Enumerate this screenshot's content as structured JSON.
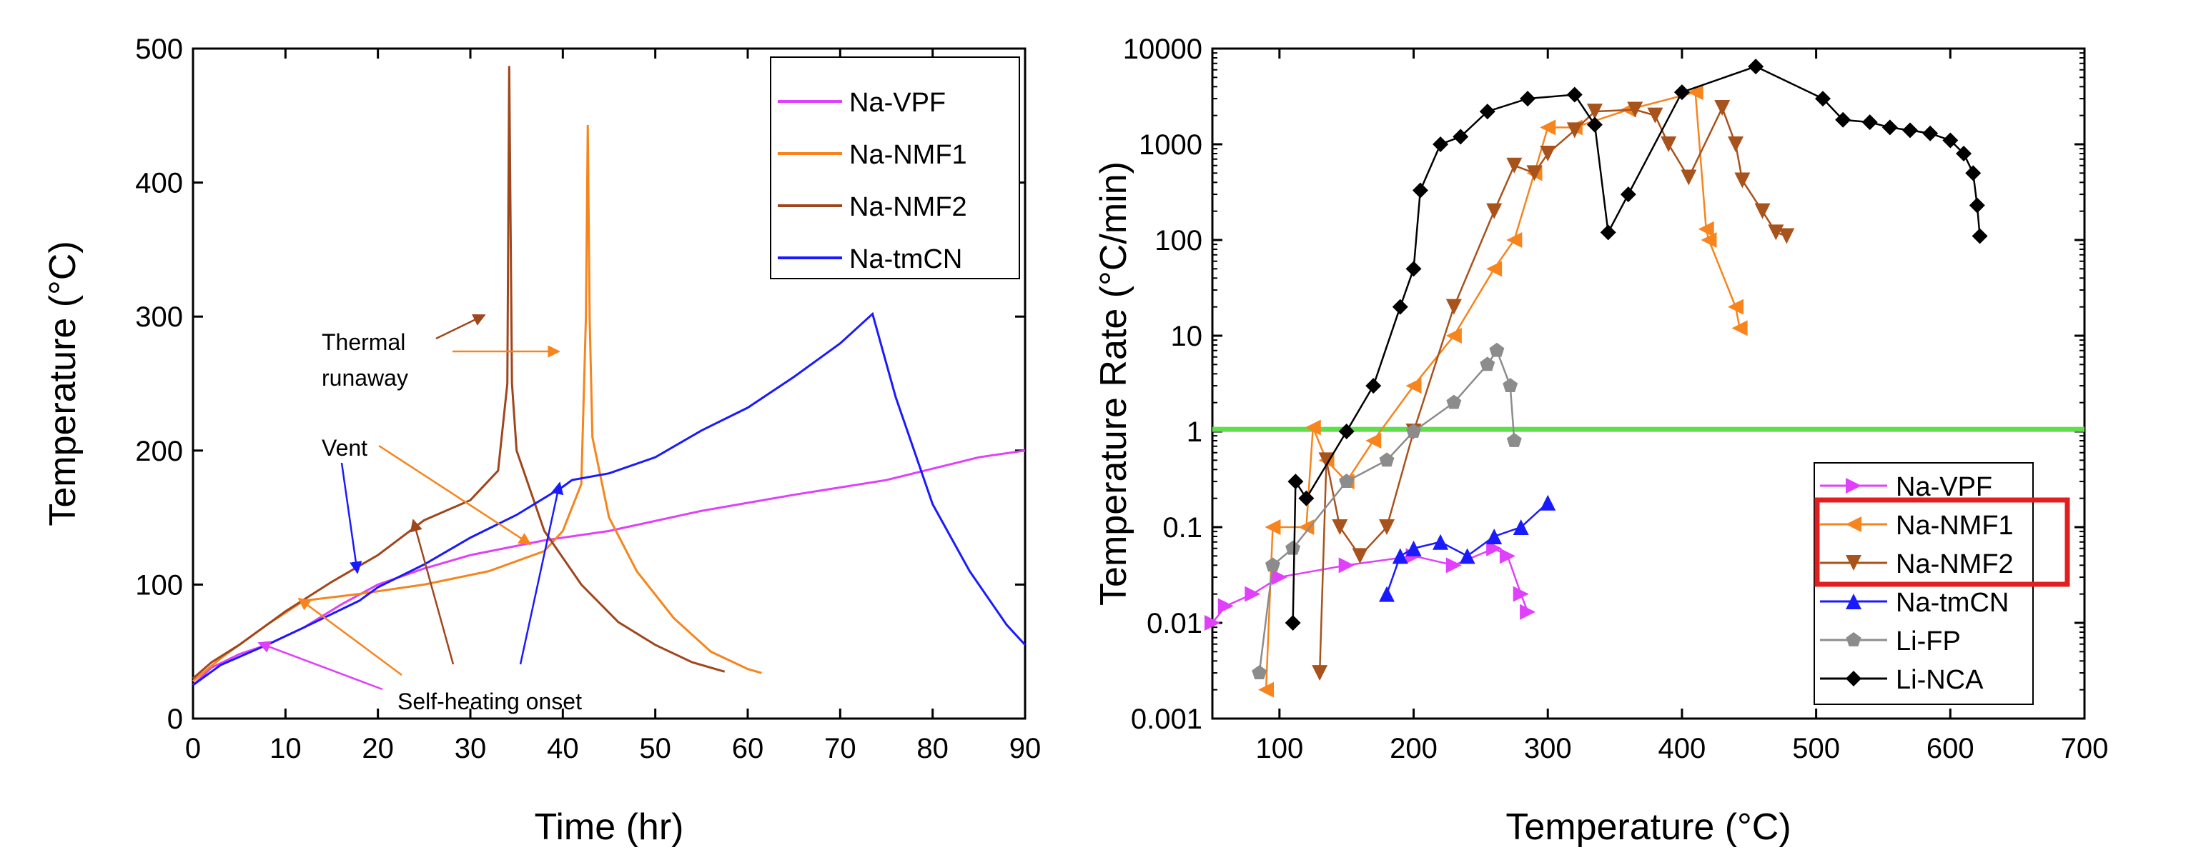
{
  "chart_data": [
    {
      "type": "line",
      "xlabel": "Time (hr)",
      "ylabel": "Temperature (°C)",
      "xlim": [
        0,
        90
      ],
      "ylim": [
        0,
        500
      ],
      "xticks": [
        "0",
        "10",
        "20",
        "30",
        "40",
        "50",
        "60",
        "70",
        "80",
        "90"
      ],
      "yticks": [
        "0",
        "100",
        "200",
        "300",
        "400",
        "500"
      ],
      "legend_position": "top-right",
      "series": [
        {
          "name": "Na-VPF",
          "color": "#e040fb",
          "points": [
            [
              0,
              25
            ],
            [
              2,
              38
            ],
            [
              5,
              48
            ],
            [
              8,
              55
            ],
            [
              12,
              68
            ],
            [
              16,
              85
            ],
            [
              20,
              100
            ],
            [
              25,
              112
            ],
            [
              30,
              122
            ],
            [
              38,
              133
            ],
            [
              45,
              140
            ],
            [
              55,
              155
            ],
            [
              65,
              167
            ],
            [
              75,
              178
            ],
            [
              85,
              195
            ],
            [
              90,
              200
            ]
          ]
        },
        {
          "name": "Na-NMF1",
          "color": "#f7841c",
          "points": [
            [
              0,
              28
            ],
            [
              3,
              45
            ],
            [
              8,
              70
            ],
            [
              12,
              88
            ],
            [
              18,
              93
            ],
            [
              25,
              100
            ],
            [
              32,
              110
            ],
            [
              38,
              125
            ],
            [
              40,
              140
            ],
            [
              42,
              175
            ],
            [
              42.5,
              300
            ],
            [
              42.7,
              443
            ],
            [
              42.9,
              300
            ],
            [
              43.2,
              210
            ],
            [
              45,
              150
            ],
            [
              48,
              110
            ],
            [
              52,
              75
            ],
            [
              56,
              50
            ],
            [
              60,
              37
            ],
            [
              61.5,
              34
            ]
          ]
        },
        {
          "name": "Na-NMF2",
          "color": "#a0461c",
          "points": [
            [
              0,
              30
            ],
            [
              2,
              42
            ],
            [
              5,
              55
            ],
            [
              10,
              80
            ],
            [
              15,
              102
            ],
            [
              20,
              122
            ],
            [
              25,
              148
            ],
            [
              30,
              163
            ],
            [
              33,
              185
            ],
            [
              34,
              250
            ],
            [
              34.2,
              487
            ],
            [
              34.5,
              250
            ],
            [
              35,
              200
            ],
            [
              38,
              140
            ],
            [
              42,
              100
            ],
            [
              46,
              72
            ],
            [
              50,
              55
            ],
            [
              54,
              42
            ],
            [
              57.5,
              35
            ]
          ]
        },
        {
          "name": "Na-tmCN",
          "color": "#1a1aff",
          "points": [
            [
              0,
              25
            ],
            [
              3,
              40
            ],
            [
              8,
              55
            ],
            [
              12,
              68
            ],
            [
              18,
              88
            ],
            [
              20,
              98
            ],
            [
              25,
              115
            ],
            [
              30,
              135
            ],
            [
              35,
              152
            ],
            [
              40,
              173
            ],
            [
              41,
              178
            ],
            [
              45,
              183
            ],
            [
              50,
              195
            ],
            [
              55,
              215
            ],
            [
              60,
              232
            ],
            [
              65,
              255
            ],
            [
              70,
              280
            ],
            [
              73.5,
              302
            ],
            [
              76,
              240
            ],
            [
              80,
              160
            ],
            [
              84,
              110
            ],
            [
              88,
              70
            ],
            [
              90,
              55
            ]
          ]
        }
      ],
      "annotations": [
        {
          "text": "Thermal",
          "color": "#000"
        },
        {
          "text": "runaway",
          "color": "#000"
        },
        {
          "text": "Vent",
          "color": "#000"
        },
        {
          "text": "Self-heating onset",
          "color": "#000"
        }
      ]
    },
    {
      "type": "scatter",
      "xlabel": "Temperature (°C)",
      "ylabel": "Temperature Rate (°C/min)",
      "xlim": [
        50,
        700
      ],
      "ylim": [
        0.001,
        10000
      ],
      "yscale": "log",
      "xticks": [
        "100",
        "200",
        "300",
        "400",
        "500",
        "600",
        "700"
      ],
      "yticks": [
        "0.001",
        "0.01",
        "0.1",
        "1",
        "10",
        "100",
        "1000",
        "10000"
      ],
      "reference_line": {
        "y": 1.05,
        "color": "#5fe04a"
      },
      "legend_position": "bottom-right",
      "highlighted_legend_entries": [
        "Na-NMF1",
        "Na-NMF2"
      ],
      "highlight_color": "#e02020",
      "series": [
        {
          "name": "Na-VPF",
          "color": "#e040fb",
          "marker": "triangle-right",
          "points": [
            [
              50,
              0.01
            ],
            [
              60,
              0.015
            ],
            [
              80,
              0.02
            ],
            [
              100,
              0.03
            ],
            [
              150,
              0.04
            ],
            [
              200,
              0.05
            ],
            [
              230,
              0.04
            ],
            [
              260,
              0.06
            ],
            [
              270,
              0.05
            ],
            [
              280,
              0.02
            ],
            [
              285,
              0.013
            ]
          ]
        },
        {
          "name": "Na-NMF1",
          "color": "#f7841c",
          "marker": "triangle-left",
          "points": [
            [
              90,
              0.002
            ],
            [
              95,
              0.1
            ],
            [
              120,
              0.1
            ],
            [
              125,
              1.1
            ],
            [
              135,
              0.5
            ],
            [
              150,
              0.3
            ],
            [
              170,
              0.8
            ],
            [
              200,
              3
            ],
            [
              230,
              10
            ],
            [
              260,
              50
            ],
            [
              275,
              100
            ],
            [
              290,
              500
            ],
            [
              300,
              1500
            ],
            [
              320,
              1500
            ],
            [
              360,
              2300
            ],
            [
              410,
              3500
            ],
            [
              418,
              130
            ],
            [
              420,
              100
            ],
            [
              440,
              20
            ],
            [
              443,
              12
            ]
          ]
        },
        {
          "name": "Na-NMF2",
          "color": "#a8521c",
          "marker": "triangle-down",
          "points": [
            [
              130,
              0.003
            ],
            [
              135,
              0.5
            ],
            [
              145,
              0.1
            ],
            [
              160,
              0.05
            ],
            [
              180,
              0.1
            ],
            [
              200,
              1
            ],
            [
              230,
              20
            ],
            [
              260,
              200
            ],
            [
              275,
              600
            ],
            [
              290,
              500
            ],
            [
              300,
              800
            ],
            [
              320,
              1400
            ],
            [
              335,
              2200
            ],
            [
              365,
              2300
            ],
            [
              380,
              2000
            ],
            [
              390,
              1000
            ],
            [
              405,
              450
            ],
            [
              430,
              2400
            ],
            [
              440,
              1000
            ],
            [
              445,
              420
            ],
            [
              460,
              200
            ],
            [
              470,
              120
            ],
            [
              478,
              110
            ]
          ]
        },
        {
          "name": "Na-tmCN",
          "color": "#1a1aff",
          "marker": "triangle-up",
          "points": [
            [
              180,
              0.02
            ],
            [
              190,
              0.05
            ],
            [
              200,
              0.06
            ],
            [
              220,
              0.07
            ],
            [
              240,
              0.05
            ],
            [
              260,
              0.08
            ],
            [
              280,
              0.1
            ],
            [
              300,
              0.18
            ]
          ]
        },
        {
          "name": "Li-FP",
          "color": "#8c8c8c",
          "marker": "pentagon",
          "points": [
            [
              85,
              0.003
            ],
            [
              95,
              0.04
            ],
            [
              110,
              0.06
            ],
            [
              150,
              0.3
            ],
            [
              180,
              0.5
            ],
            [
              200,
              1
            ],
            [
              230,
              2
            ],
            [
              255,
              5
            ],
            [
              262,
              7
            ],
            [
              272,
              3
            ],
            [
              275,
              0.8
            ]
          ]
        },
        {
          "name": "Li-NCA",
          "color": "#000000",
          "marker": "diamond",
          "points": [
            [
              110,
              0.01
            ],
            [
              112,
              0.3
            ],
            [
              120,
              0.2
            ],
            [
              150,
              1
            ],
            [
              170,
              3
            ],
            [
              190,
              20
            ],
            [
              200,
              50
            ],
            [
              205,
              330
            ],
            [
              220,
              1000
            ],
            [
              235,
              1200
            ],
            [
              255,
              2200
            ],
            [
              285,
              3000
            ],
            [
              320,
              3300
            ],
            [
              335,
              1600
            ],
            [
              345,
              120
            ],
            [
              360,
              300
            ],
            [
              400,
              3500
            ],
            [
              455,
              6500
            ],
            [
              505,
              3000
            ],
            [
              520,
              1800
            ],
            [
              540,
              1700
            ],
            [
              555,
              1500
            ],
            [
              570,
              1400
            ],
            [
              585,
              1300
            ],
            [
              600,
              1100
            ],
            [
              610,
              800
            ],
            [
              617,
              500
            ],
            [
              620,
              230
            ],
            [
              622,
              110
            ]
          ]
        }
      ]
    }
  ]
}
